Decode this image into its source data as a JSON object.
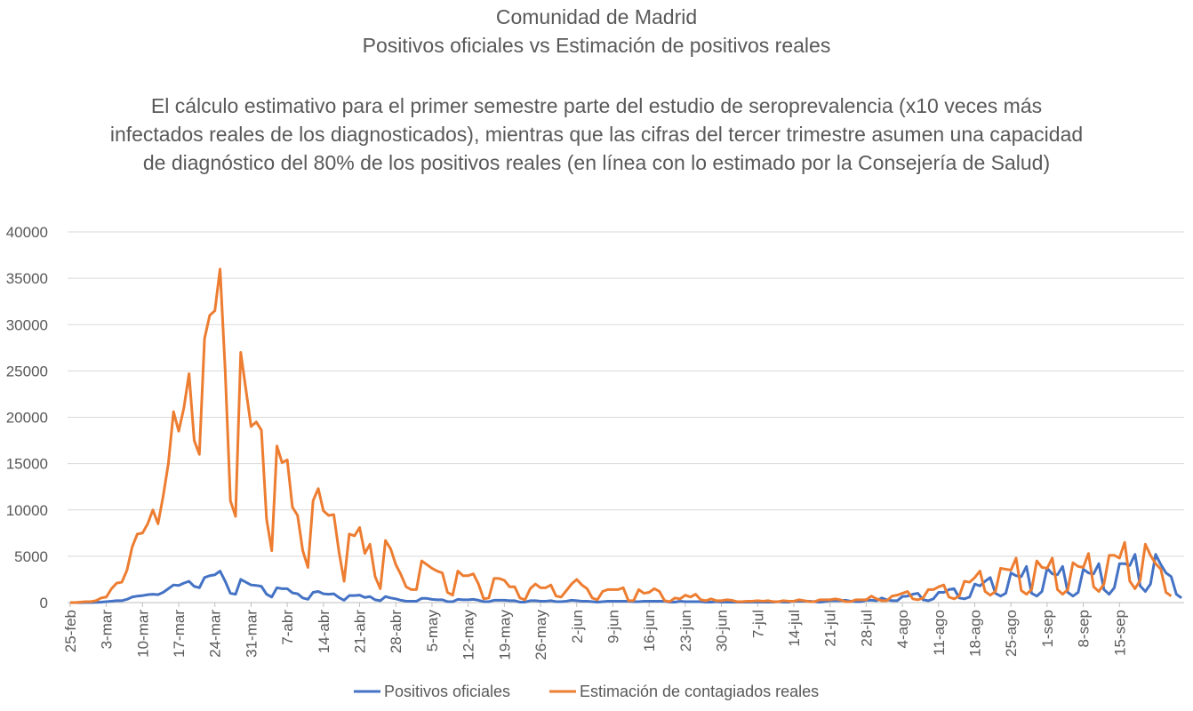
{
  "chart_data": {
    "type": "line",
    "title_lines": [
      "Comunidad de Madrid",
      "Positivos oficiales vs Estimación de positivos reales"
    ],
    "subtitle": "El cálculo estimativo para el primer semestre parte del estudio de seroprevalencia (x10 veces más infectados reales de los diagnosticados), mientras que las cifras del tercer trimestre asumen una capacidad de diagnóstico del 80% de los positivos reales (en línea con lo estimado por la Consejería de Salud)",
    "xlabel": "",
    "ylabel": "",
    "ylim": [
      0,
      40000
    ],
    "yticks": [
      0,
      5000,
      10000,
      15000,
      20000,
      25000,
      30000,
      35000,
      40000
    ],
    "x_start": "25-feb",
    "x_end": "20-sep",
    "xticks": [
      "25-feb",
      "3-mar",
      "10-mar",
      "17-mar",
      "24-mar",
      "31-mar",
      "7-abr",
      "14-abr",
      "21-abr",
      "28-abr",
      "5-may",
      "12-may",
      "19-may",
      "26-may",
      "2-jun",
      "9-jun",
      "16-jun",
      "23-jun",
      "30-jun",
      "7-jul",
      "14-jul",
      "21-jul",
      "28-jul",
      "4-ago",
      "11-ago",
      "18-ago",
      "25-ago",
      "1-sep",
      "8-sep",
      "15-sep"
    ],
    "grid": true,
    "legend_position": "bottom",
    "series": [
      {
        "name": "Positivos oficiales",
        "color": "#4472C4",
        "values": [
          0,
          0,
          5,
          10,
          10,
          20,
          50,
          100,
          150,
          200,
          200,
          350,
          600,
          700,
          750,
          850,
          900,
          850,
          1100,
          1500,
          1900,
          1850,
          2100,
          2300,
          1750,
          1600,
          2700,
          2900,
          3000,
          3400,
          2300,
          1000,
          900,
          2500,
          2200,
          1900,
          1850,
          1750,
          900,
          600,
          1600,
          1500,
          1500,
          1050,
          950,
          500,
          350,
          1100,
          1200,
          950,
          900,
          950,
          550,
          250,
          750,
          750,
          800,
          550,
          650,
          300,
          200,
          650,
          500,
          400,
          250,
          150,
          150,
          150,
          450,
          450,
          350,
          300,
          300,
          100,
          100,
          350,
          300,
          300,
          350,
          250,
          100,
          100,
          250,
          250,
          250,
          200,
          200,
          50,
          50,
          200,
          200,
          150,
          150,
          200,
          100,
          100,
          150,
          250,
          200,
          150,
          150,
          100,
          50,
          100,
          150,
          150,
          150,
          150,
          150,
          100,
          100,
          150,
          150,
          150,
          150,
          150,
          50,
          50,
          150,
          100,
          100,
          100,
          100,
          50,
          50,
          100,
          50,
          50,
          50,
          50,
          50,
          50,
          50,
          50,
          50,
          50,
          50,
          100,
          50,
          50,
          150,
          150,
          150,
          150,
          100,
          50,
          100,
          200,
          200,
          200,
          250,
          150,
          100,
          100,
          250,
          250,
          200,
          500,
          300,
          200,
          200,
          650,
          700,
          900,
          1000,
          300,
          200,
          400,
          1100,
          1100,
          1400,
          1500,
          500,
          400,
          600,
          2000,
          1800,
          2300,
          2700,
          1000,
          700,
          1000,
          3200,
          2900,
          2800,
          3900,
          1000,
          700,
          1200,
          3700,
          3100,
          3000,
          3900,
          1100,
          700,
          1100,
          3600,
          3200,
          3100,
          4200,
          1400,
          900,
          1600,
          4200,
          4200,
          4000,
          5200,
          1800,
          1200,
          2000,
          5200,
          4100,
          3200,
          2800,
          900,
          500
        ]
      },
      {
        "name": "Estimación de contagiados reales",
        "color": "#ED7D31",
        "values": [
          0,
          0,
          50,
          100,
          100,
          200,
          500,
          600,
          1500,
          2100,
          2200,
          3500,
          6000,
          7400,
          7500,
          8500,
          10000,
          8500,
          11500,
          15000,
          20600,
          18500,
          21000,
          24700,
          17500,
          16000,
          28500,
          31000,
          31500,
          36000,
          25000,
          11000,
          9300,
          27000,
          23000,
          19000,
          19500,
          18600,
          9000,
          5600,
          16900,
          15100,
          15400,
          10300,
          9400,
          5600,
          3800,
          11000,
          12300,
          9900,
          9400,
          9500,
          5500,
          2300,
          7400,
          7200,
          8100,
          5300,
          6300,
          2800,
          1500,
          6700,
          5800,
          4100,
          3000,
          1700,
          1400,
          1400,
          4500,
          4100,
          3700,
          3400,
          3200,
          1100,
          800,
          3400,
          2900,
          2900,
          3100,
          2000,
          400,
          500,
          2600,
          2600,
          2400,
          1700,
          1700,
          500,
          300,
          1500,
          2000,
          1600,
          1600,
          1900,
          700,
          600,
          1300,
          2000,
          2500,
          1900,
          1500,
          500,
          300,
          1200,
          1400,
          1400,
          1400,
          1600,
          200,
          200,
          1400,
          1000,
          1100,
          1500,
          1200,
          200,
          100,
          500,
          400,
          800,
          600,
          900,
          300,
          200,
          400,
          200,
          200,
          300,
          250,
          100,
          100,
          150,
          150,
          200,
          150,
          200,
          100,
          100,
          200,
          150,
          150,
          300,
          200,
          100,
          100,
          300,
          300,
          300,
          400,
          300,
          100,
          100,
          300,
          300,
          300,
          700,
          400,
          200,
          200,
          700,
          800,
          1000,
          1200,
          400,
          300,
          500,
          1400,
          1400,
          1700,
          1900,
          600,
          400,
          700,
          2300,
          2200,
          2700,
          3400,
          1200,
          800,
          1200,
          3700,
          3600,
          3500,
          4800,
          1300,
          900,
          1400,
          4500,
          3800,
          3700,
          4800,
          1400,
          900,
          1400,
          4300,
          3900,
          3800,
          5300,
          1700,
          1200,
          2000,
          5100,
          5100,
          4800,
          6500,
          2300,
          1500,
          2400,
          6300,
          5100,
          4200,
          3600,
          1100,
          700
        ]
      }
    ]
  }
}
